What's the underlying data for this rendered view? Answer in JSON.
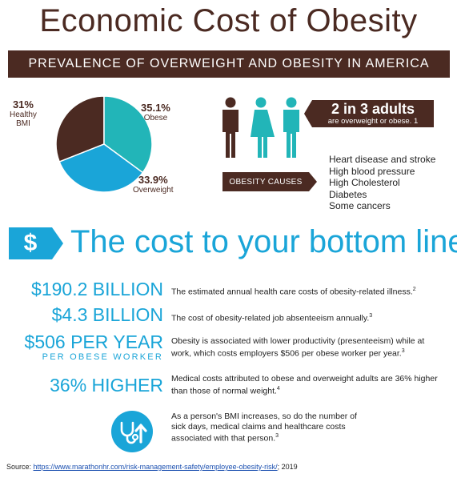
{
  "title": "Economic Cost of Obesity",
  "banner": "PREVALENCE OF OVERWEIGHT AND OBESITY IN AMERICA",
  "pie": {
    "slices": [
      {
        "pct": "31%",
        "label_line1": "Healthy",
        "label_line2": "BMI",
        "value": 31,
        "color": "#4b2a22"
      },
      {
        "pct": "35.1%",
        "label_line1": "Obese",
        "label_line2": "",
        "value": 35.1,
        "color": "#22b5b8"
      },
      {
        "pct": "33.9%",
        "label_line1": "Overweight",
        "label_line2": "",
        "value": 33.9,
        "color": "#1aa5d8"
      }
    ]
  },
  "people_colors": {
    "man_brown": "#4b2a22",
    "woman": "#22b5b8",
    "man_teal": "#22b5b8"
  },
  "stat": {
    "main": "2 in 3 adults",
    "sub": "are overweight or obese.",
    "sup": "1"
  },
  "causes": {
    "tag": "OBESITY CAUSES",
    "items": [
      "Heart disease and stroke",
      "High blood pressure",
      "High Cholesterol",
      "Diabetes",
      "Some cancers"
    ]
  },
  "cost": {
    "symbol": "$",
    "heading": "The cost to your bottom line",
    "rows": [
      {
        "value": "$190.2 BILLION",
        "sub": "",
        "desc": "The estimated annual health care costs of obesity-related illness.",
        "sup": "2"
      },
      {
        "value": "$4.3 BILLION",
        "sub": "",
        "desc": "The cost of obesity-related job absenteeism annually.",
        "sup": "3"
      },
      {
        "value": "$506 PER YEAR",
        "sub": "PER OBESE WORKER",
        "desc": "Obesity is associated with lower productivity (presenteeism) while at work, which costs employers $506 per obese worker per year.",
        "sup": "3"
      },
      {
        "value": "36% HIGHER",
        "sub": "",
        "desc": "Medical costs attributed to obese and overweight adults are 36% higher than those of normal weight.",
        "sup": "4"
      },
      {
        "value": "",
        "sub": "",
        "desc": "As a person's BMI increases, so do the number of sick days, medical claims and healthcare costs associated with that person.",
        "sup": "3"
      }
    ]
  },
  "source": {
    "prefix": "Source: ",
    "link": "https://www.marathonhr.com/risk-management-safety/employee-obesity-risk/",
    "suffix": "; 2019"
  }
}
